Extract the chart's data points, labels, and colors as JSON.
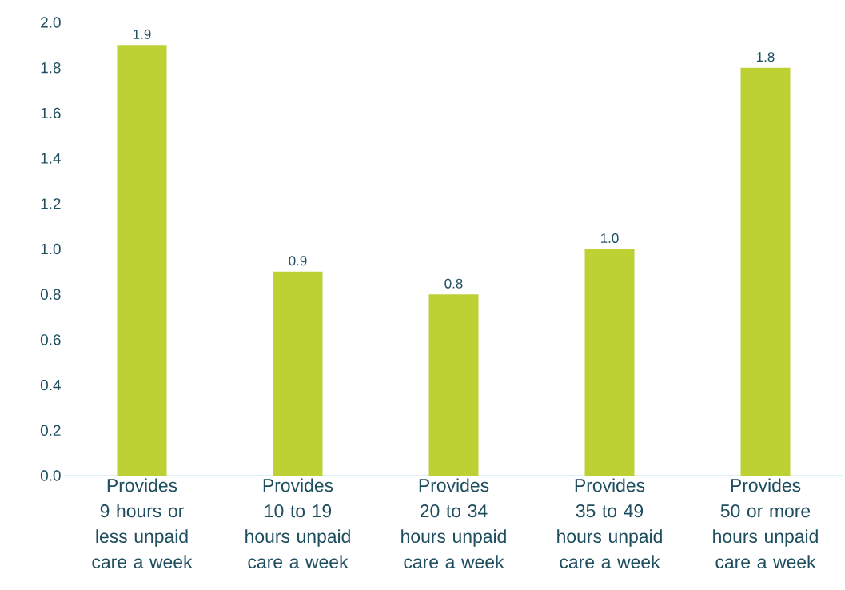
{
  "chart_data": {
    "type": "bar",
    "categories": [
      "Provides 9 hours or less unpaid care a week",
      "Provides 10 to 19 hours unpaid care a week",
      "Provides 20 to 34 hours unpaid care a week",
      "Provides 35 to 49 hours unpaid care a week",
      "Provides 50 or more hours unpaid care a week"
    ],
    "values": [
      1.9,
      0.9,
      0.8,
      1.0,
      1.8
    ],
    "value_labels": [
      "1.9",
      "0.9",
      "0.8",
      "1.0",
      "1.8"
    ],
    "color": "#bed134",
    "ylim": [
      0,
      2.0
    ],
    "yticks": [
      {
        "value": 0,
        "label": "0.0"
      },
      {
        "value": 0.2,
        "label": "0.2"
      },
      {
        "value": 0.4,
        "label": "0.4"
      },
      {
        "value": 0.6,
        "label": "0.6"
      },
      {
        "value": 0.8,
        "label": "0.8"
      },
      {
        "value": 1.0,
        "label": "1.0"
      },
      {
        "value": 1.2,
        "label": "1.2"
      },
      {
        "value": 1.4,
        "label": "1.4"
      },
      {
        "value": 1.6,
        "label": "1.6"
      },
      {
        "value": 1.8,
        "label": "1.8"
      },
      {
        "value": 2.0,
        "label": "2.0"
      }
    ],
    "grid": false
  }
}
